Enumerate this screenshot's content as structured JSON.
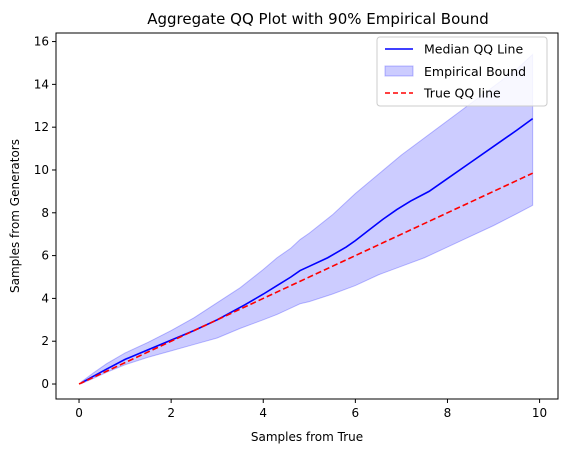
{
  "chart_data": {
    "type": "line",
    "title": "Aggregate QQ Plot with 90% Empirical Bound",
    "xlabel": "Samples from True",
    "ylabel": "Samples from Generators",
    "xlim": [
      -0.5,
      10.4
    ],
    "ylim": [
      -0.7,
      16.4
    ],
    "xticks": [
      0,
      2,
      4,
      6,
      8,
      10
    ],
    "yticks": [
      0,
      2,
      4,
      6,
      8,
      10,
      12,
      14,
      16
    ],
    "grid": false,
    "legend_position": "top-right",
    "series": [
      {
        "name": "Median QQ Line",
        "kind": "line",
        "color": "#0000ff",
        "dash": "solid",
        "x": [
          0.05,
          0.3,
          0.6,
          1.0,
          1.5,
          2.0,
          2.5,
          3.0,
          3.3,
          3.6,
          4.0,
          4.3,
          4.6,
          4.8,
          5.0,
          5.4,
          5.8,
          6.0,
          6.3,
          6.6,
          6.9,
          7.2,
          7.6,
          8.0,
          8.5,
          9.0,
          9.5,
          9.85
        ],
        "y": [
          0.05,
          0.35,
          0.7,
          1.15,
          1.6,
          2.05,
          2.5,
          3.0,
          3.35,
          3.7,
          4.2,
          4.6,
          5.0,
          5.3,
          5.5,
          5.9,
          6.4,
          6.7,
          7.2,
          7.7,
          8.15,
          8.55,
          9.0,
          9.6,
          10.35,
          11.1,
          11.85,
          12.4
        ]
      },
      {
        "name": "Empirical Bound",
        "kind": "band",
        "color": "#0000ff",
        "opacity": 0.2,
        "x": [
          0.05,
          0.3,
          0.6,
          1.0,
          1.5,
          2.0,
          2.5,
          3.0,
          3.5,
          4.0,
          4.3,
          4.6,
          4.8,
          5.0,
          5.5,
          6.0,
          6.5,
          7.0,
          7.5,
          8.0,
          8.5,
          9.0,
          9.5,
          9.85
        ],
        "lower": [
          0.02,
          0.25,
          0.55,
          0.9,
          1.25,
          1.55,
          1.85,
          2.15,
          2.6,
          3.0,
          3.25,
          3.55,
          3.75,
          3.85,
          4.2,
          4.6,
          5.1,
          5.5,
          5.9,
          6.4,
          6.9,
          7.4,
          7.95,
          8.35
        ],
        "upper": [
          0.1,
          0.5,
          0.95,
          1.45,
          1.95,
          2.5,
          3.1,
          3.8,
          4.5,
          5.35,
          5.9,
          6.35,
          6.75,
          7.05,
          7.9,
          8.9,
          9.8,
          10.7,
          11.5,
          12.3,
          13.1,
          13.9,
          14.7,
          15.4
        ]
      },
      {
        "name": "True QQ line",
        "kind": "line",
        "color": "#ff0000",
        "dash": "dashed",
        "x": [
          0.0,
          9.85
        ],
        "y": [
          0.0,
          9.85
        ]
      }
    ]
  }
}
